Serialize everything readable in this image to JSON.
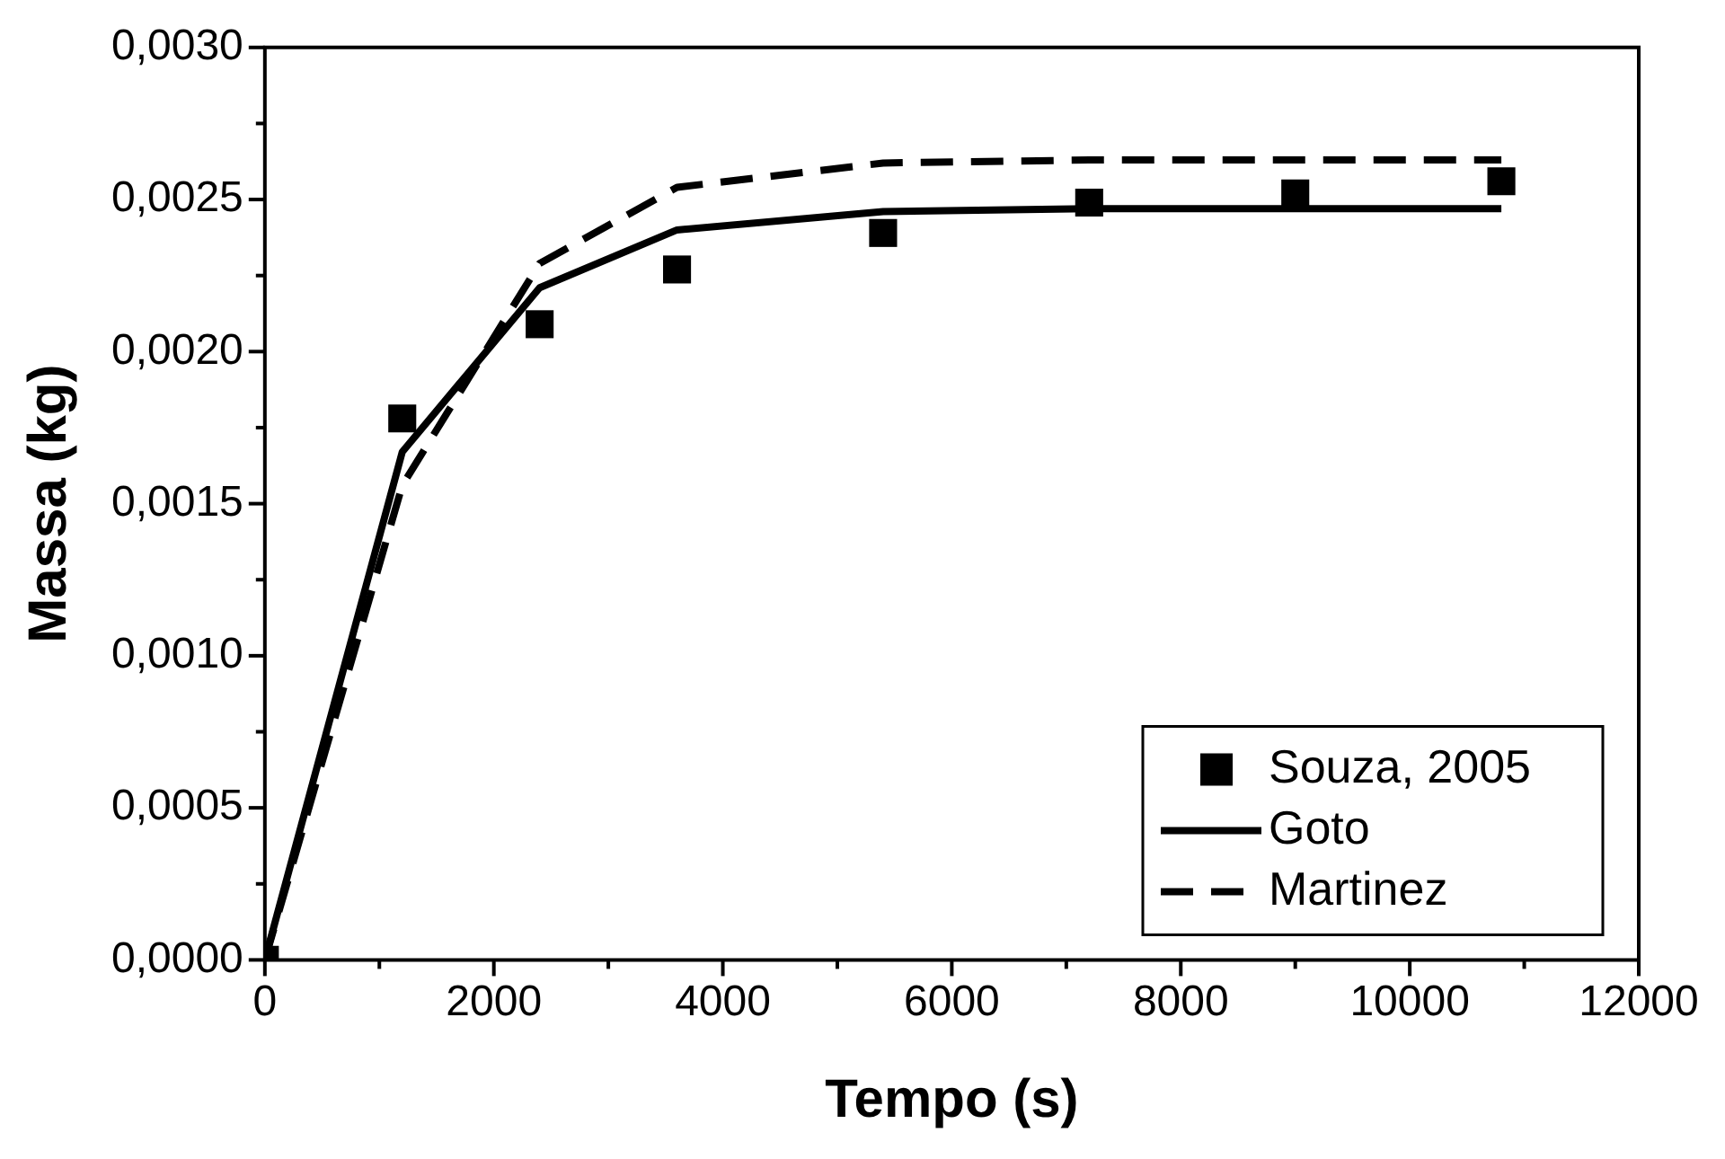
{
  "chart_data": {
    "type": "line",
    "xlabel": "Tempo (s)",
    "ylabel": "Massa (kg)",
    "xlim": [
      0,
      12000
    ],
    "xticks": [
      0,
      {
        "value": 1000,
        "label": null
      },
      2000,
      {
        "value": 3000,
        "label": null
      },
      4000,
      {
        "value": 5000,
        "label": null
      },
      6000,
      {
        "value": 7000,
        "label": null
      },
      8000,
      {
        "value": 9000,
        "label": null
      },
      10000,
      {
        "value": 11000,
        "label": null
      },
      12000
    ],
    "ylim": [
      0,
      0.003
    ],
    "yticks": [
      {
        "value": 0,
        "label": "0,0000"
      },
      {
        "value": 0.00025,
        "label": null
      },
      {
        "value": 0.0005,
        "label": "0,0005"
      },
      {
        "value": 0.00075,
        "label": null
      },
      {
        "value": 0.001,
        "label": "0,0010"
      },
      {
        "value": 0.00125,
        "label": null
      },
      {
        "value": 0.0015,
        "label": "0,0015"
      },
      {
        "value": 0.00175,
        "label": null
      },
      {
        "value": 0.002,
        "label": "0,0020"
      },
      {
        "value": 0.00225,
        "label": null
      },
      {
        "value": 0.0025,
        "label": "0,0025"
      },
      {
        "value": 0.00275,
        "label": null
      },
      {
        "value": 0.003,
        "label": "0,0030"
      }
    ],
    "x": [
      0,
      1200,
      2400,
      3600,
      5400,
      7200,
      9000,
      10800
    ],
    "series": [
      {
        "name": "Souza, 2005",
        "type": "scatter",
        "marker": "square",
        "color": "#000000",
        "values": [
          0,
          0.00178,
          0.00209,
          0.00227,
          0.00239,
          0.00249,
          0.00252,
          0.00256
        ]
      },
      {
        "name": "Goto",
        "type": "line",
        "line_style": "solid",
        "color": "#000000",
        "values": [
          0,
          0.00167,
          0.00221,
          0.0024,
          0.00246,
          0.00247,
          0.00247,
          0.00247
        ]
      },
      {
        "name": "Martinez",
        "type": "line",
        "line_style": "dashed",
        "color": "#000000",
        "values": [
          0,
          0.00156,
          0.00229,
          0.00254,
          0.00262,
          0.00263,
          0.00263,
          0.00263
        ]
      }
    ],
    "legend": "bottom right",
    "grid": false
  }
}
